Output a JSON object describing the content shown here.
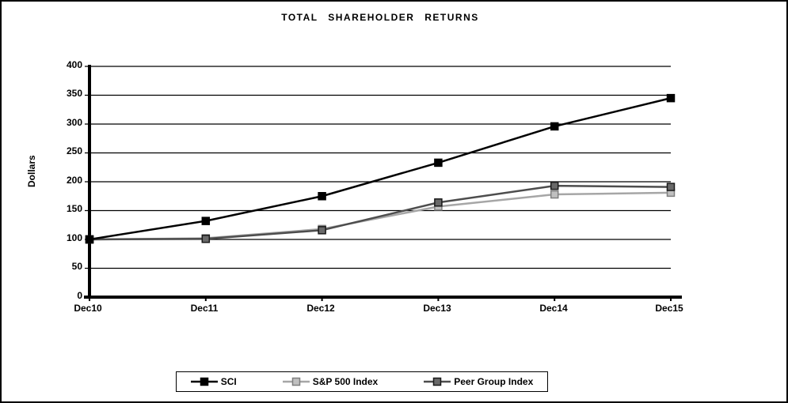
{
  "chart_data": {
    "type": "line",
    "title": "TOTAL SHAREHOLDER RETURNS",
    "ylabel": "Dollars",
    "categories": [
      "Dec10",
      "Dec11",
      "Dec12",
      "Dec13",
      "Dec14",
      "Dec15"
    ],
    "y_ticks": [
      400,
      350,
      300,
      250,
      200,
      150,
      100,
      50,
      0
    ],
    "ylim": [
      0,
      400
    ],
    "grid": "horizontal",
    "legend_position": "bottom",
    "axis_color": "#000000",
    "background_color": "#ffffff",
    "series": [
      {
        "name": "SCI",
        "values": [
          100,
          132,
          175,
          233,
          296,
          345
        ],
        "line_color": "#000000",
        "marker_fill": "#000000",
        "marker_stroke": "#000000"
      },
      {
        "name": "S&P 500 Index",
        "values": [
          100,
          102,
          118,
          157,
          178,
          181
        ],
        "line_color": "#a6a6a6",
        "marker_fill": "#c0c0c0",
        "marker_stroke": "#7f7f7f"
      },
      {
        "name": "Peer Group Index",
        "values": [
          100,
          101,
          116,
          164,
          193,
          191
        ],
        "line_color": "#4d4d4d",
        "marker_fill": "#696969",
        "marker_stroke": "#1a1a1a"
      }
    ]
  }
}
